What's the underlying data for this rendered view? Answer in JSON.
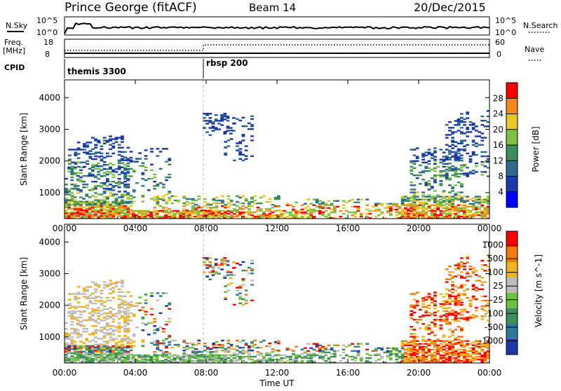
{
  "header": {
    "station": "Prince George (fitACF)",
    "beam": "Beam 14",
    "date": "20/Dec/2015"
  },
  "top_panels": {
    "nsky_label": "N.Sky",
    "nsky_ticks": [
      "10^5",
      "10^0"
    ],
    "nsearch_label": "N.Search",
    "freq_label": "Freq.",
    "freq_unit": "[MHz]",
    "freq_ticks": [
      "18",
      "8"
    ],
    "nave_ticks": [
      "60",
      "0"
    ],
    "nave_label": "Nave",
    "cpid_label": "CPID",
    "cpid_segments": [
      {
        "label": "themis 3300",
        "start_hour": 0
      },
      {
        "label": "rbsp 200",
        "start_hour": 8
      }
    ]
  },
  "chart_data": [
    {
      "type": "heatmap",
      "name": "power",
      "ylabel": "Slant Range [km]",
      "ylim": [
        180,
        4560
      ],
      "yticks": [
        "1000",
        "2000",
        "3000",
        "4000"
      ],
      "xlim_hours": [
        0,
        24
      ],
      "xticks": [
        "00:00",
        "04:00",
        "08:00",
        "12:00",
        "16:00",
        "20:00",
        "00:00"
      ],
      "colorbar": {
        "label": "Power [dB]",
        "ticks": [
          "4",
          "8",
          "12",
          "16",
          "20",
          "24",
          "28"
        ],
        "colors": [
          "#0000ff",
          "#1a3aa8",
          "#2e6a8e",
          "#3c8f5c",
          "#7cc142",
          "#e6c728",
          "#f08a1d",
          "#ff0000"
        ]
      }
    },
    {
      "type": "heatmap",
      "name": "velocity",
      "ylabel": "Slant Range [km]",
      "ylim": [
        180,
        4560
      ],
      "yticks": [
        "1000",
        "2000",
        "3000",
        "4000"
      ],
      "xlim_hours": [
        0,
        24
      ],
      "xticks": [
        "00:00",
        "04:00",
        "08:00",
        "12:00",
        "16:00",
        "20:00",
        "00:00"
      ],
      "xlabel": "Time UT",
      "colorbar": {
        "label": "Velocity [m s^-1]",
        "ticks": [
          "1000",
          "500",
          "100",
          "25",
          "-25",
          "-100",
          "-500",
          "-1000"
        ],
        "colors": [
          "#1a3aa8",
          "#2e7a9a",
          "#3c8f5c",
          "#6cc23a",
          "#bdbdbd",
          "#f2b21d",
          "#f07a12",
          "#ff0000"
        ]
      }
    }
  ]
}
